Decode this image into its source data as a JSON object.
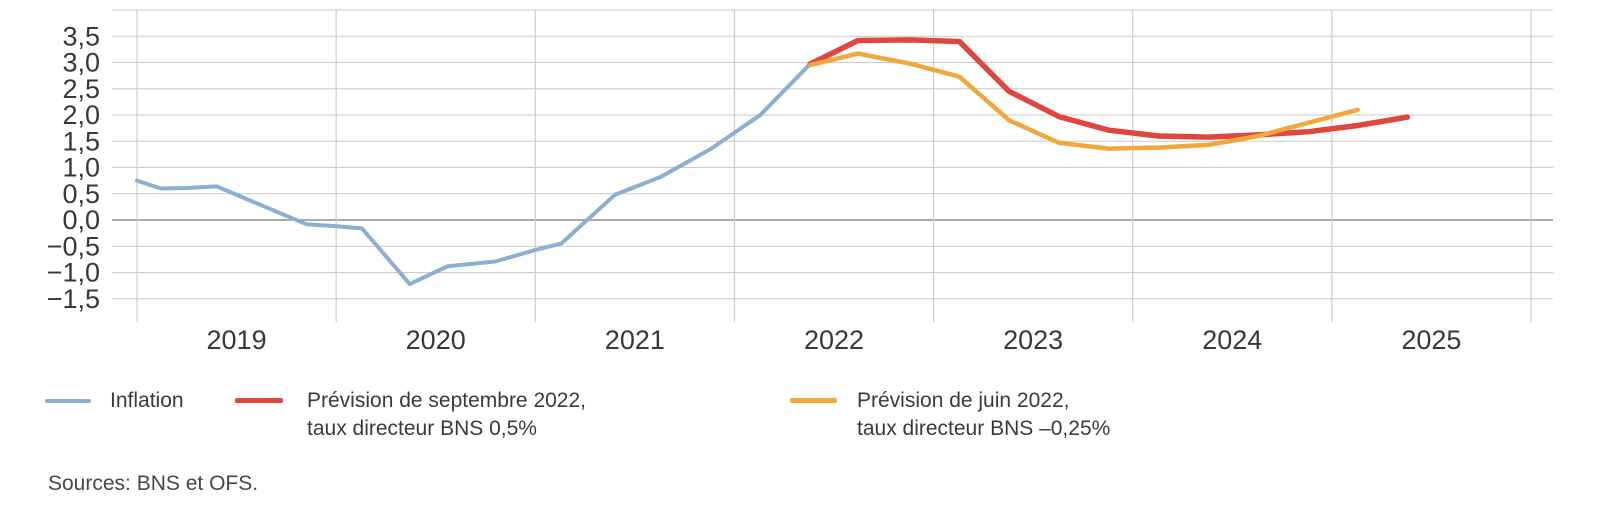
{
  "chart_data": {
    "type": "line",
    "title": "",
    "xlabel": "",
    "ylabel": "",
    "grid": true,
    "legend_position": "bottom",
    "x_axis": {
      "gridline_years": [
        2019,
        2020,
        2021,
        2022,
        2023,
        2024,
        2025,
        2026
      ],
      "tick_positions": [
        2019.5,
        2020.5,
        2021.5,
        2022.5,
        2023.5,
        2024.5,
        2025.5
      ],
      "tick_labels": [
        "2019",
        "2020",
        "2021",
        "2022",
        "2023",
        "2024",
        "2025"
      ],
      "range": [
        2018.87,
        2026.11
      ]
    },
    "y_axis": {
      "grid_top": 4.0,
      "grid_bottom": -1.5,
      "grid_step": 0.5,
      "tick_values": [
        3.5,
        3.0,
        2.5,
        2.0,
        1.5,
        1.0,
        0.5,
        0.0,
        -0.5,
        -1.0,
        -1.5
      ],
      "tick_labels": [
        "3,5",
        "3,0",
        "2,5",
        "2,0",
        "1,5",
        "1,0",
        "0,5",
        "0,0",
        "−0,5",
        "−1,0",
        "−1,5"
      ],
      "range": [
        -1.95,
        4.0
      ],
      "zero_line": true
    },
    "series": [
      {
        "name": "Inflation",
        "color": "#8DAED3",
        "stroke_width": 4,
        "x": [
          2019.0,
          2019.12,
          2019.25,
          2019.4,
          2019.85,
          2020.0,
          2020.13,
          2020.37,
          2020.56,
          2020.8,
          2021.0,
          2021.13,
          2021.4,
          2021.63,
          2021.88,
          2022.13,
          2022.38
        ],
        "y": [
          0.75,
          0.6,
          0.61,
          0.64,
          -0.08,
          -0.12,
          -0.16,
          -1.22,
          -0.88,
          -0.79,
          -0.57,
          -0.45,
          0.48,
          0.82,
          1.35,
          2.0,
          2.97
        ]
      },
      {
        "name": "Prévision de septembre 2022, taux directeur BNS 0,5%",
        "color": "#E0463D",
        "stroke_width": 5.5,
        "x": [
          2022.38,
          2022.62,
          2022.88,
          2023.13,
          2023.38,
          2023.63,
          2023.88,
          2024.13,
          2024.38,
          2024.63,
          2024.88,
          2025.13,
          2025.38
        ],
        "y": [
          2.97,
          3.42,
          3.43,
          3.4,
          2.45,
          1.97,
          1.71,
          1.6,
          1.58,
          1.62,
          1.68,
          1.8,
          1.96
        ]
      },
      {
        "name": "Prévision de juin 2022, taux directeur BNS –0,25%",
        "color": "#F0A73C",
        "stroke_width": 4.5,
        "x": [
          2022.38,
          2022.62,
          2022.88,
          2023.13,
          2023.38,
          2023.63,
          2023.88,
          2024.13,
          2024.38,
          2024.63,
          2024.88,
          2025.13
        ],
        "y": [
          2.95,
          3.17,
          2.98,
          2.73,
          1.9,
          1.47,
          1.36,
          1.38,
          1.43,
          1.6,
          1.85,
          2.1
        ]
      }
    ]
  },
  "legend": {
    "items": [
      {
        "lines": [
          "Inflation"
        ]
      },
      {
        "lines": [
          "Prévision de septembre 2022,",
          "taux directeur BNS 0,5%"
        ]
      },
      {
        "lines": [
          "Prévision de juin 2022,",
          "taux directeur BNS –0,25%"
        ]
      }
    ]
  },
  "footer": {
    "sources": "Sources: BNS et OFS."
  },
  "colors": {
    "inflation": "#8DAED3",
    "forecast_september": "#E0463D",
    "forecast_june": "#F0A73C",
    "gridline": "#C9C9C9",
    "zero_line": "#8E8E8E",
    "axis_text": "#383838"
  }
}
